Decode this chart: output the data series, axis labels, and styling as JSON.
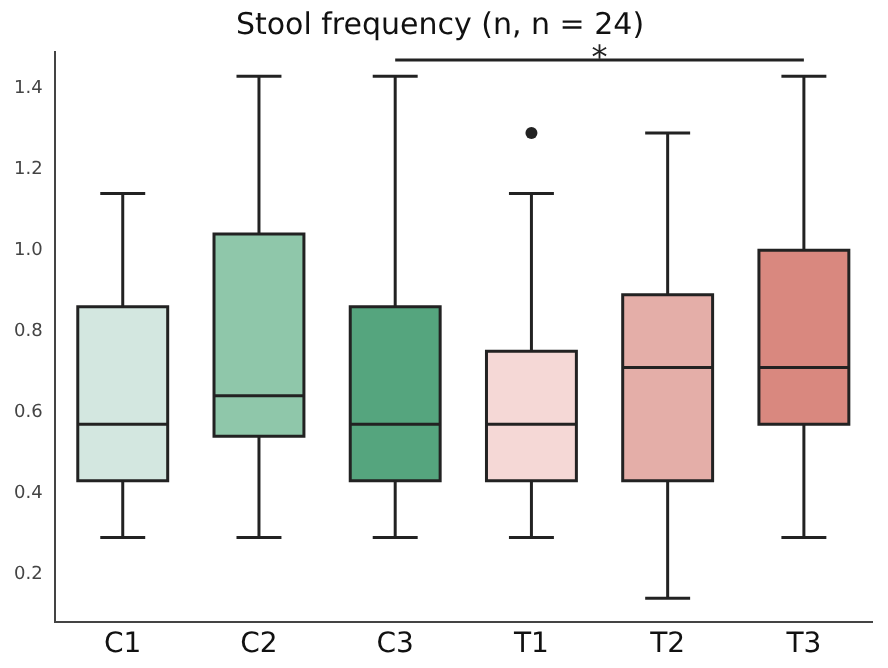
{
  "chart_data": {
    "type": "box",
    "title": "Stool frequency (n, n = 24)",
    "categories": [
      "C1",
      "C2",
      "C3",
      "T1",
      "T2",
      "T3"
    ],
    "colors": [
      "#d3e7e0",
      "#8fc7aa",
      "#55a57e",
      "#f5d8d6",
      "#e4aea8",
      "#d9887f"
    ],
    "boxes": [
      {
        "low": 0.29,
        "q1": 0.43,
        "median": 0.57,
        "q3": 0.86,
        "high": 1.14
      },
      {
        "low": 0.29,
        "q1": 0.54,
        "median": 0.64,
        "q3": 1.04,
        "high": 1.43
      },
      {
        "low": 0.29,
        "q1": 0.43,
        "median": 0.57,
        "q3": 0.86,
        "high": 1.43
      },
      {
        "low": 0.29,
        "q1": 0.43,
        "median": 0.57,
        "q3": 0.75,
        "high": 1.14,
        "outliers": [
          1.29
        ]
      },
      {
        "low": 0.14,
        "q1": 0.43,
        "median": 0.71,
        "q3": 0.89,
        "high": 1.29
      },
      {
        "low": 0.29,
        "q1": 0.57,
        "median": 0.71,
        "q3": 1.0,
        "high": 1.43
      }
    ],
    "ylim": [
      0.08,
      1.49
    ],
    "yticks": [
      0.2,
      0.4,
      0.6,
      0.8,
      {
        "value": 1,
        "label": "1.0"
      },
      1.2,
      1.4
    ],
    "grid": false,
    "legend": false,
    "annotations": [
      "*"
    ]
  }
}
